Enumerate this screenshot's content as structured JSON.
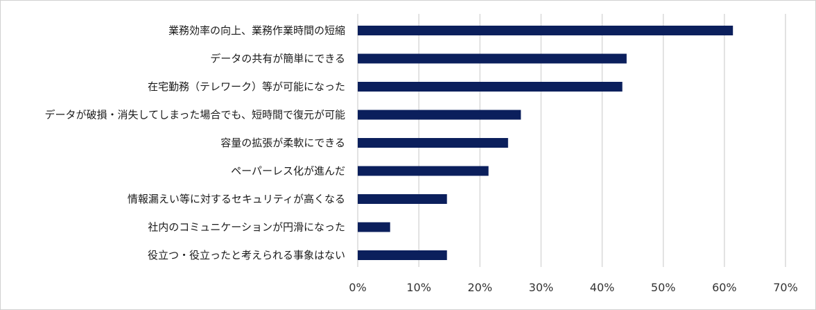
{
  "chart_data": {
    "type": "bar",
    "orientation": "horizontal",
    "title": "",
    "xlabel": "",
    "ylabel": "",
    "xlim": [
      0,
      70
    ],
    "x_ticks": [
      0,
      10,
      20,
      30,
      40,
      50,
      60,
      70
    ],
    "x_tick_labels": [
      "0%",
      "10%",
      "20%",
      "30%",
      "40%",
      "50%",
      "60%",
      "70%"
    ],
    "grid": "vertical",
    "legend": "none",
    "bar_color": "#0b1f5c",
    "categories": [
      "業務効率の向上、業務作業時間の短縮",
      "データの共有が簡単にできる",
      "在宅勤務（テレワーク）等が可能になった",
      "データが破損・消失してしまった場合でも、短時間で復元が可能",
      "容量の拡張が柔軟にできる",
      "ペーパーレス化が進んだ",
      "情報漏えい等に対するセキュリティが高くなる",
      "社内のコミュニケーションが円滑になった",
      "役立つ・役立ったと考えられる事象はない"
    ],
    "values": [
      61.4,
      44.0,
      43.3,
      26.7,
      24.6,
      21.4,
      14.6,
      5.3,
      14.6
    ]
  }
}
